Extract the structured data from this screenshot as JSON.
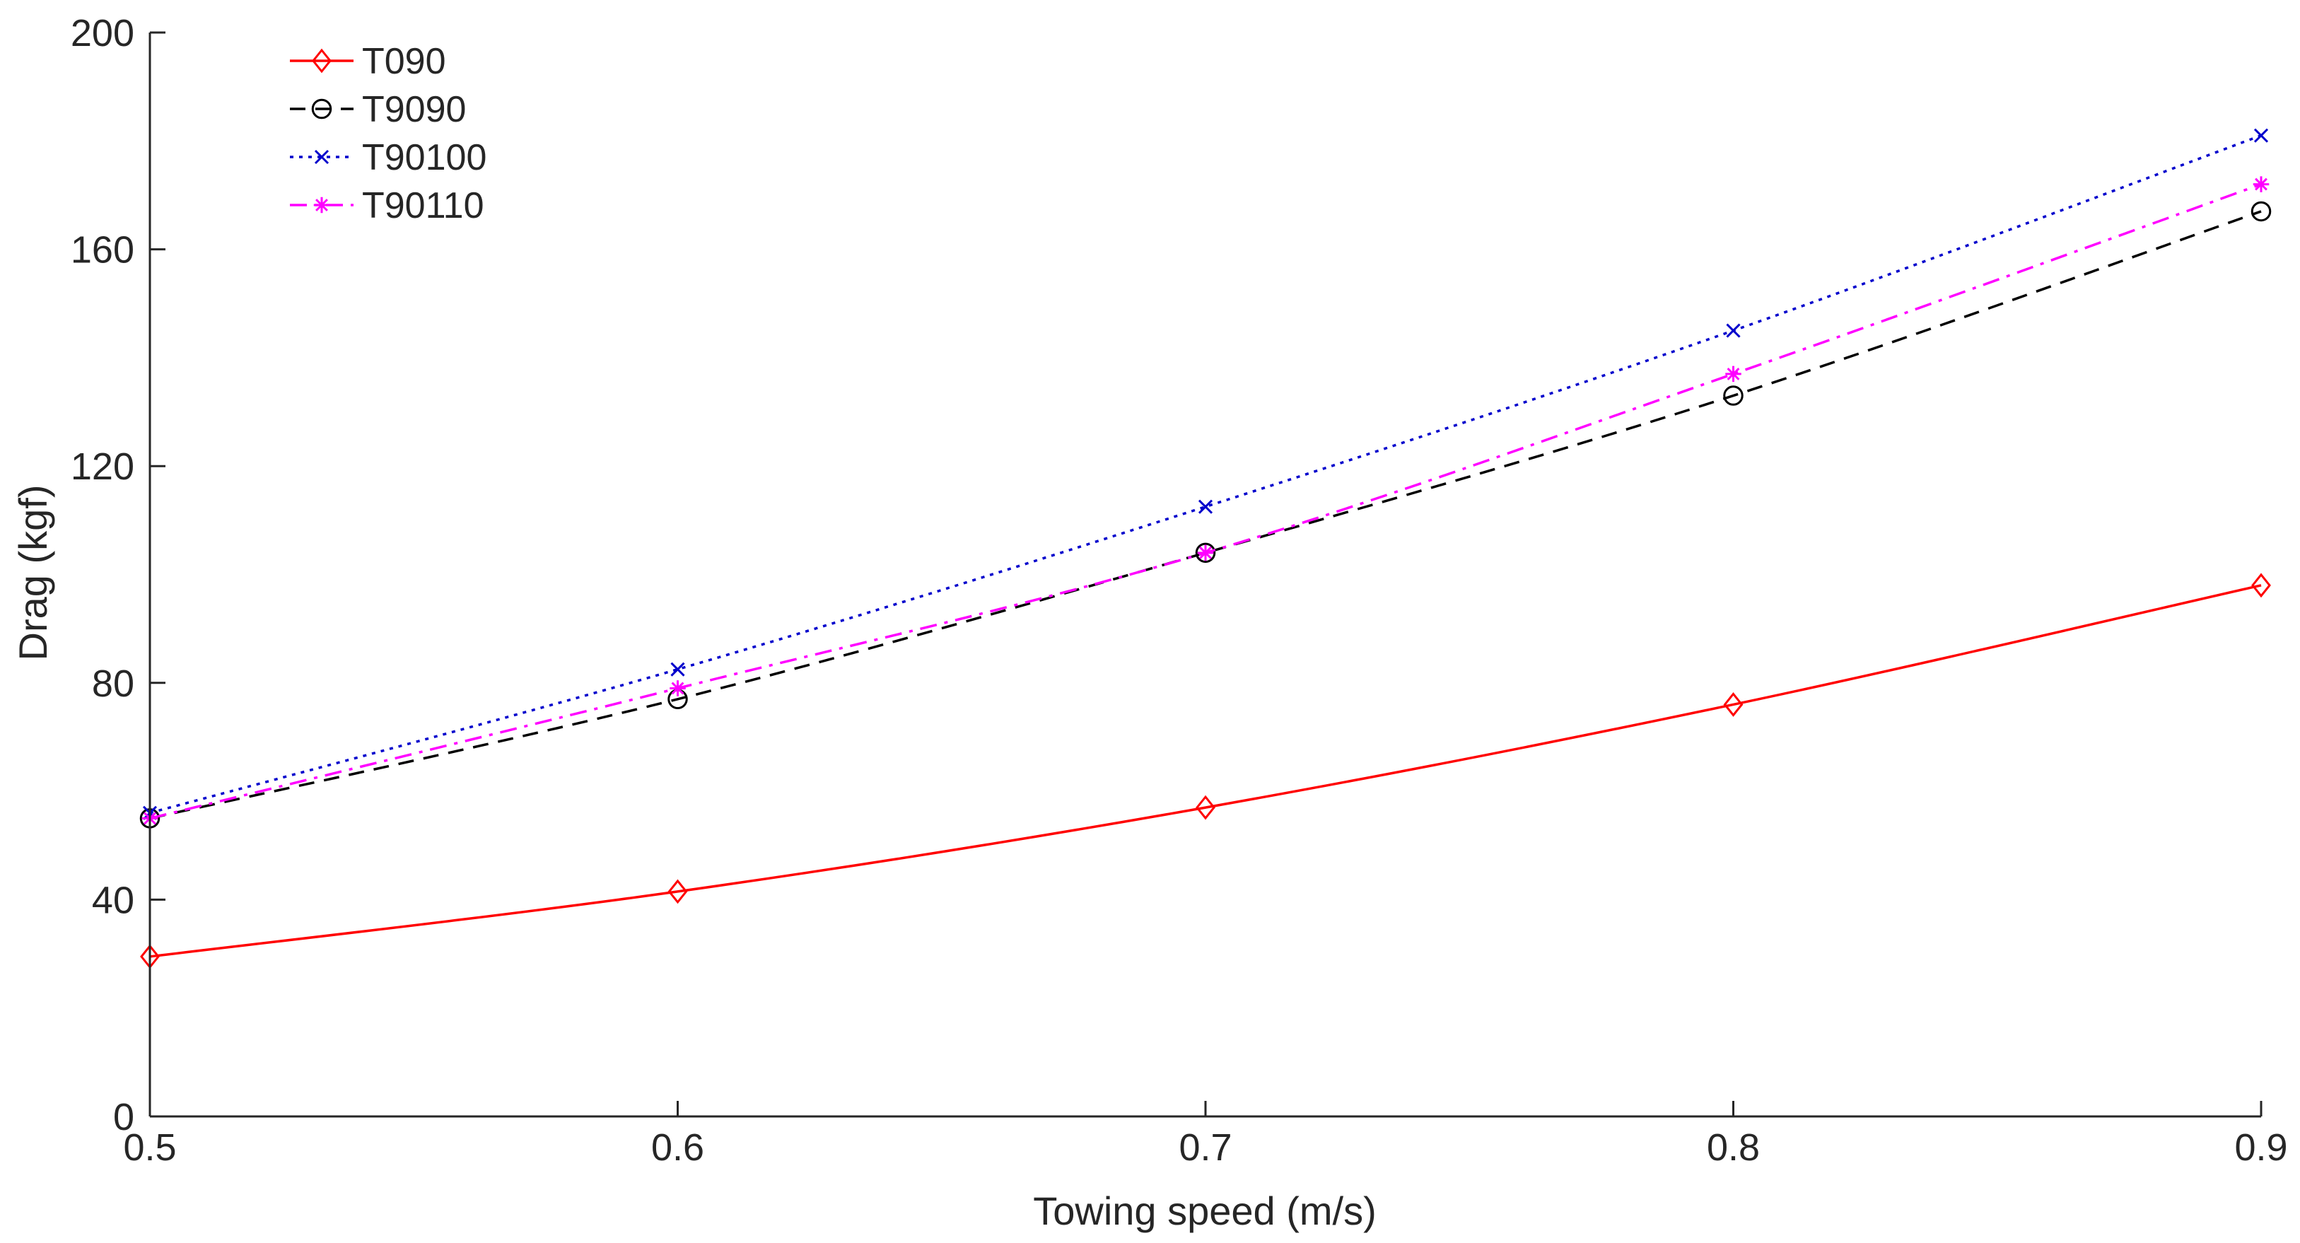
{
  "chart_data": {
    "type": "line",
    "title": "",
    "xlabel": "Towing speed (m/s)",
    "ylabel": "Drag (kgf)",
    "xlim": [
      0.5,
      0.9
    ],
    "ylim": [
      0,
      200
    ],
    "x": [
      0.5,
      0.6,
      0.7,
      0.8,
      0.9
    ],
    "xticks": [
      0.5,
      0.6,
      0.7,
      0.8,
      0.9
    ],
    "xtick_labels": [
      "0.5",
      "0.6",
      "0.7",
      "0.8",
      "0.9"
    ],
    "yticks": [
      0,
      40,
      80,
      120,
      160,
      200
    ],
    "ytick_labels": [
      "0",
      "40",
      "80",
      "120",
      "160",
      "200"
    ],
    "grid": false,
    "legend_position": "top-left",
    "series": [
      {
        "name": "T090",
        "color": "#ff0000",
        "line_style": "solid",
        "marker": "diamond",
        "values": [
          29.5,
          41.5,
          57.0,
          76.0,
          98.0
        ]
      },
      {
        "name": "T9090",
        "color": "#000000",
        "line_style": "dashed",
        "marker": "circle",
        "values": [
          55.0,
          77.0,
          104.0,
          133.0,
          167.0
        ]
      },
      {
        "name": "T90100",
        "color": "#0000cc",
        "line_style": "dotted",
        "marker": "x",
        "values": [
          56.0,
          82.5,
          112.5,
          145.0,
          181.0
        ]
      },
      {
        "name": "T90110",
        "color": "#ff00ff",
        "line_style": "dashdot",
        "marker": "star",
        "values": [
          55.0,
          79.0,
          104.0,
          137.0,
          172.0
        ]
      }
    ]
  }
}
